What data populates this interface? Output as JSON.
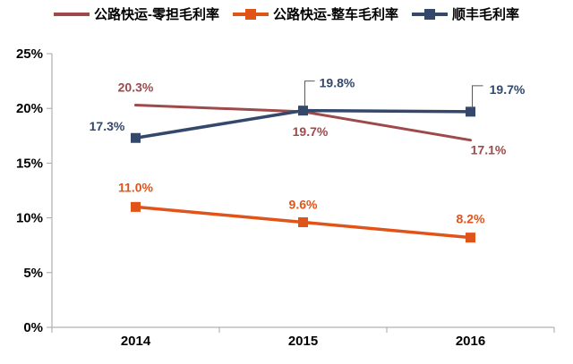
{
  "legend": {
    "items": [
      {
        "label": "公路快运-零担毛利率",
        "color": "#9E4A4B",
        "marker": "line"
      },
      {
        "label": "公路快运-整车毛利率",
        "color": "#E0541A",
        "marker": "line-square"
      },
      {
        "label": "顺丰毛利率",
        "color": "#33486B",
        "marker": "line-square"
      }
    ]
  },
  "chart_data": {
    "type": "line",
    "title": "",
    "categories": [
      "2014",
      "2015",
      "2016"
    ],
    "series": [
      {
        "name": "公路快运-零担毛利率",
        "color": "#9E4A4B",
        "marker": "none",
        "line_width": 3,
        "values": [
          20.3,
          19.7,
          17.1
        ],
        "labels": [
          "20.3%",
          "19.7%",
          "17.1%"
        ],
        "label_pos": [
          {
            "dx": 0,
            "dy": -15,
            "anchor": "middle"
          },
          {
            "dx": 8,
            "dy": 27,
            "anchor": "middle"
          },
          {
            "dx": 20,
            "dy": 16,
            "anchor": "middle"
          }
        ]
      },
      {
        "name": "公路快运-整车毛利率",
        "color": "#E0541A",
        "marker": "square",
        "line_width": 3.5,
        "values": [
          11.0,
          9.6,
          8.2
        ],
        "labels": [
          "11.0%",
          "9.6%",
          "8.2%"
        ],
        "label_pos": [
          {
            "dx": 0,
            "dy": -17,
            "anchor": "middle"
          },
          {
            "dx": 0,
            "dy": -15,
            "anchor": "middle"
          },
          {
            "dx": 0,
            "dy": -16,
            "anchor": "middle"
          }
        ]
      },
      {
        "name": "顺丰毛利率",
        "color": "#33486B",
        "marker": "square",
        "line_width": 3.5,
        "values": [
          17.3,
          19.8,
          19.7
        ],
        "labels": [
          "17.3%",
          "19.8%",
          "19.7%"
        ],
        "label_pos": [
          {
            "dx": -32,
            "dy": -8,
            "anchor": "middle"
          },
          {
            "dx": 38,
            "dy": -26,
            "anchor": "middle",
            "leader": [
              [
                2,
                -4
              ],
              [
                2,
                -33
              ],
              [
                13,
                -33
              ]
            ]
          },
          {
            "dx": 41,
            "dy": -20,
            "anchor": "middle",
            "leader": [
              [
                2,
                -4
              ],
              [
                2,
                -29
              ],
              [
                14,
                -29
              ]
            ]
          }
        ]
      }
    ],
    "xlabel": "",
    "ylabel": "",
    "ylim": [
      0,
      25
    ],
    "ytick_step": 5,
    "ytick_labels": [
      "0%",
      "5%",
      "10%",
      "15%",
      "20%",
      "25%"
    ],
    "grid": false,
    "legend_position": "top",
    "axis_color": "#BFBFBF",
    "tick_color": "#A6A6A6",
    "leader_color": "#595959",
    "axis_text_color": "#000000"
  }
}
